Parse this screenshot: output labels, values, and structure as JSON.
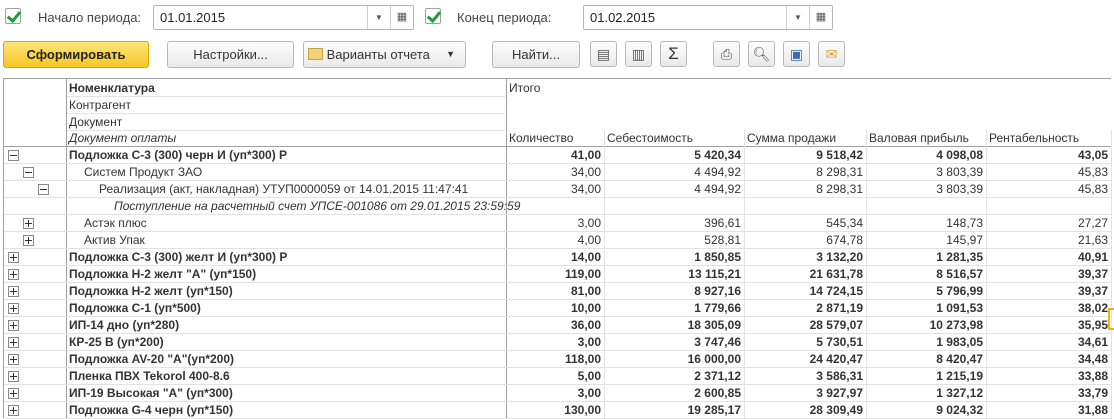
{
  "filters": {
    "start_label": "Начало периода:",
    "start_value": "01.01.2015",
    "start_checked": true,
    "end_label": "Конец периода:",
    "end_value": "01.02.2015",
    "end_checked": true
  },
  "toolbar": {
    "generate": "Сформировать",
    "settings": "Настройки...",
    "variants": "Варианты отчета",
    "find": "Найти...",
    "icons": [
      "expand-all-icon",
      "collapse-all-icon",
      "sum-icon",
      "print-icon",
      "preview-icon",
      "save-icon",
      "mail-icon"
    ],
    "sum_glyph": "Σ"
  },
  "header": {
    "groupings": [
      "Номенклатура",
      "Контрагент",
      "Документ",
      "Документ оплаты"
    ],
    "total": "Итого",
    "columns": [
      "Количество",
      "Себестоимость",
      "Сумма продажи",
      "Валовая прибыль",
      "Рентабельность"
    ]
  },
  "rows": [
    {
      "level": 0,
      "toggle": "minus",
      "style": "bold",
      "name": "Подложка С-3 (300) черн И (уп*300) Р",
      "values": [
        "41,00",
        "5 420,34",
        "9 518,42",
        "4 098,08",
        "43,05"
      ]
    },
    {
      "level": 1,
      "toggle": "minus",
      "style": "normal",
      "name": "Систем Продукт ЗАО",
      "values": [
        "34,00",
        "4 494,92",
        "8 298,31",
        "3 803,39",
        "45,83"
      ]
    },
    {
      "level": 2,
      "toggle": "minus",
      "style": "normal",
      "name": "Реализация (акт, накладная) УТУП0000059 от 14.01.2015 11:47:41",
      "values": [
        "34,00",
        "4 494,92",
        "8 298,31",
        "3 803,39",
        "45,83"
      ]
    },
    {
      "level": 3,
      "toggle": "",
      "style": "italic",
      "name": "Поступление на расчетный счет УПСЕ-001086 от 29.01.2015 23:59:59",
      "values": [
        "",
        "",
        "",
        "",
        ""
      ]
    },
    {
      "level": 1,
      "toggle": "plus",
      "style": "normal",
      "name": "Астэк плюс",
      "values": [
        "3,00",
        "396,61",
        "545,34",
        "148,73",
        "27,27"
      ]
    },
    {
      "level": 1,
      "toggle": "plus",
      "style": "normal",
      "name": "Актив Упак",
      "values": [
        "4,00",
        "528,81",
        "674,78",
        "145,97",
        "21,63"
      ]
    },
    {
      "level": 0,
      "toggle": "plus",
      "style": "bold",
      "name": "Подложка С-3 (300) желт И (уп*300) Р",
      "values": [
        "14,00",
        "1 850,85",
        "3 132,20",
        "1 281,35",
        "40,91"
      ]
    },
    {
      "level": 0,
      "toggle": "plus",
      "style": "bold",
      "name": "Подложка Н-2 желт \"А\" (уп*150)",
      "values": [
        "119,00",
        "13 115,21",
        "21 631,78",
        "8 516,57",
        "39,37"
      ]
    },
    {
      "level": 0,
      "toggle": "plus",
      "style": "bold",
      "name": "Подложка Н-2 желт (уп*150)",
      "values": [
        "81,00",
        "8 927,16",
        "14 724,15",
        "5 796,99",
        "39,37"
      ]
    },
    {
      "level": 0,
      "toggle": "plus",
      "style": "bold",
      "name": "Подложка С-1 (уп*500)",
      "values": [
        "10,00",
        "1 779,66",
        "2 871,19",
        "1 091,53",
        "38,02"
      ]
    },
    {
      "level": 0,
      "toggle": "plus",
      "style": "bold",
      "name": "ИП-14 дно (уп*280)",
      "values": [
        "36,00",
        "18 305,09",
        "28 579,07",
        "10 273,98",
        "35,95"
      ]
    },
    {
      "level": 0,
      "toggle": "plus",
      "style": "bold",
      "name": "КР-25 В (уп*200)",
      "values": [
        "3,00",
        "3 747,46",
        "5 730,51",
        "1 983,05",
        "34,61"
      ]
    },
    {
      "level": 0,
      "toggle": "plus",
      "style": "bold",
      "name": "Подложка AV-20 \"А\"(уп*200)",
      "values": [
        "118,00",
        "16 000,00",
        "24 420,47",
        "8 420,47",
        "34,48"
      ]
    },
    {
      "level": 0,
      "toggle": "plus",
      "style": "bold",
      "name": "Пленка ПВХ Tekorol 400-8.6",
      "values": [
        "5,00",
        "2 371,12",
        "3 586,31",
        "1 215,19",
        "33,88"
      ]
    },
    {
      "level": 0,
      "toggle": "plus",
      "style": "bold",
      "name": "ИП-19 Высокая \"А\" (уп*300)",
      "values": [
        "3,00",
        "2 600,85",
        "3 927,97",
        "1 327,12",
        "33,79"
      ]
    },
    {
      "level": 0,
      "toggle": "plus",
      "style": "bold",
      "name": "Подложка G-4 черн (уп*150)",
      "values": [
        "130,00",
        "19 285,17",
        "28 309,49",
        "9 024,32",
        "31,88"
      ]
    }
  ],
  "colors": {
    "accent": "#f6c624",
    "selection": "#f0b400"
  }
}
